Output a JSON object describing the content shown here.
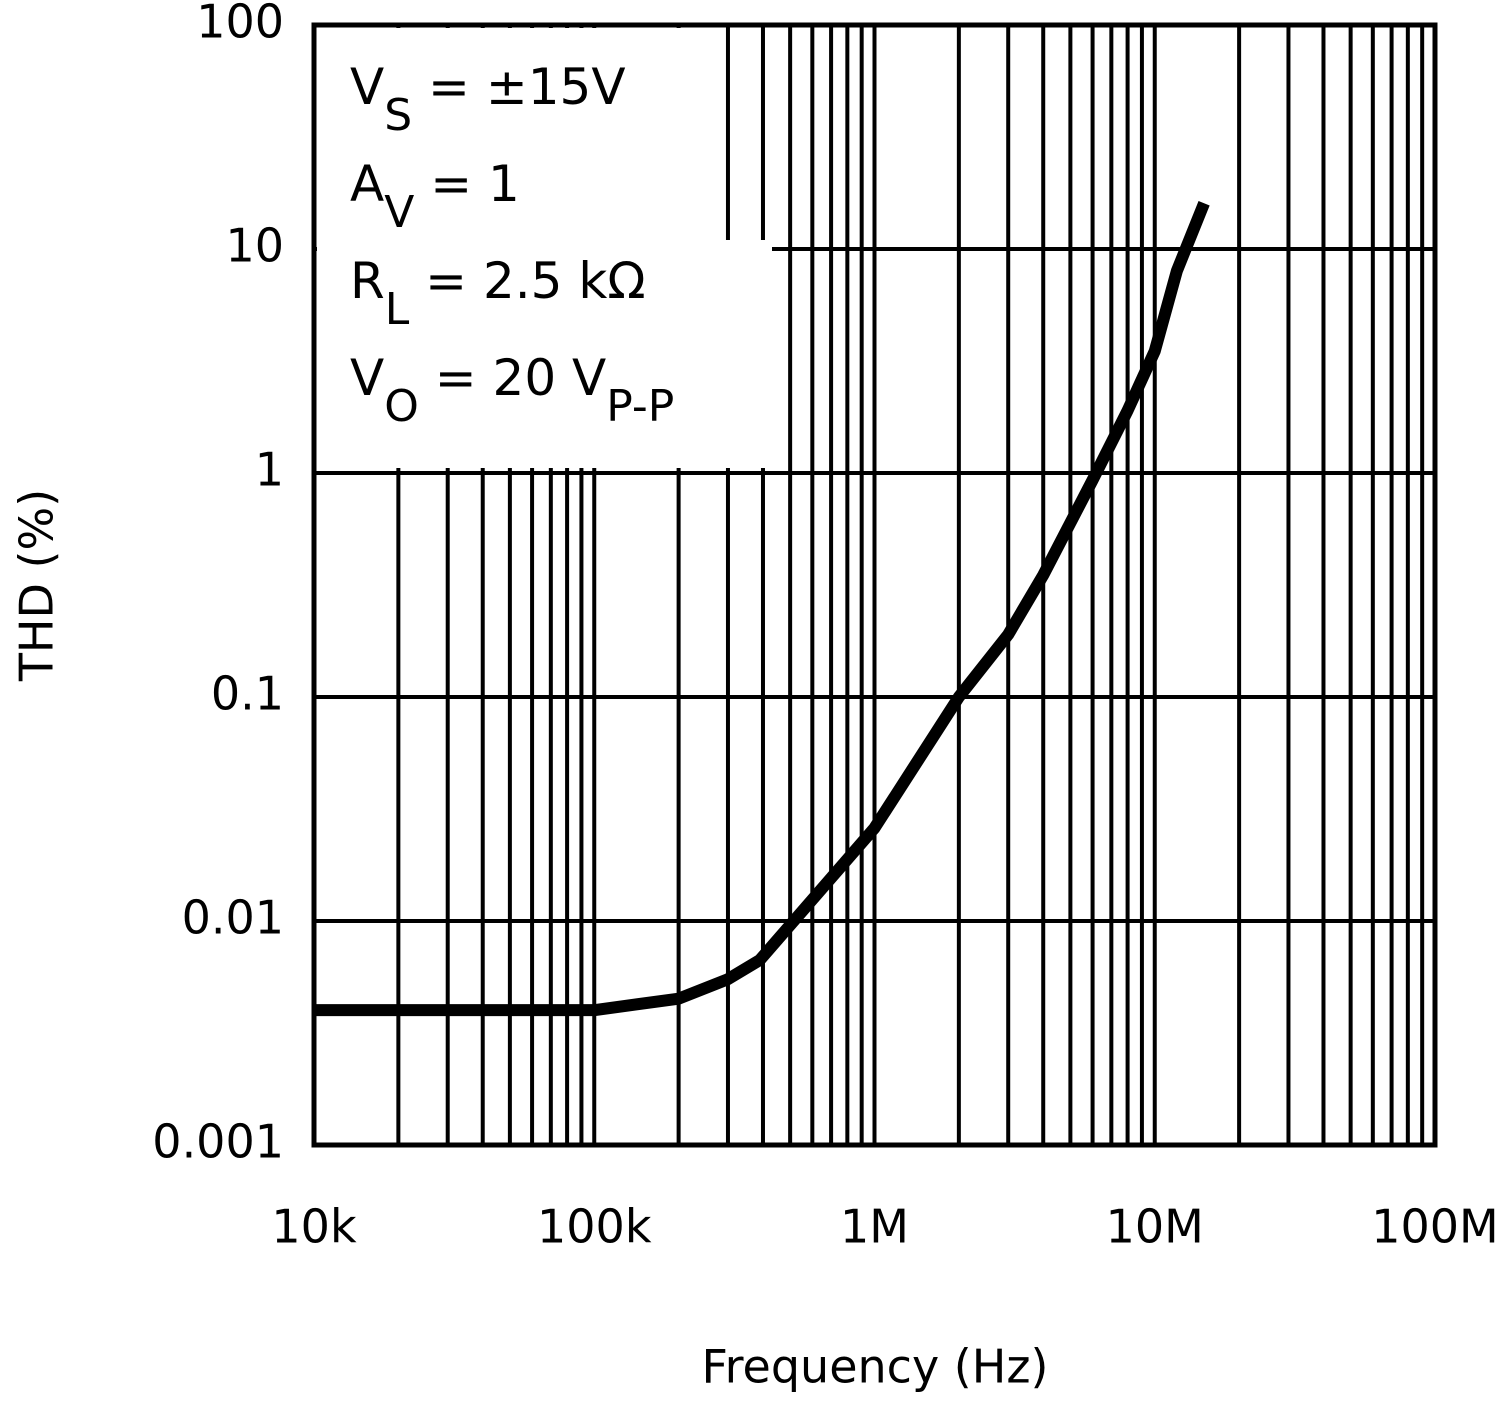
{
  "chart_data": {
    "type": "line",
    "x_label": "Frequency (Hz)",
    "y_label": "THD (%)",
    "annotations": [
      [
        {
          "t": "V"
        },
        {
          "t": "S",
          "sub": true
        },
        {
          "t": " =  ±15V"
        }
      ],
      [
        {
          "t": "A"
        },
        {
          "t": "V",
          "sub": true
        },
        {
          "t": "  =  1"
        }
      ],
      [
        {
          "t": "R"
        },
        {
          "t": "L",
          "sub": true
        },
        {
          "t": "  =  2.5 kΩ"
        }
      ],
      [
        {
          "t": "V"
        },
        {
          "t": "O",
          "sub": true
        },
        {
          "t": "  =  20 V"
        },
        {
          "t": "P-P",
          "sub": true
        }
      ]
    ],
    "x": [
      10000,
      50000,
      100000,
      200000,
      300000,
      390000,
      1000000,
      2000000,
      3000000,
      4000000,
      6000000,
      8000000,
      10000000,
      12000000,
      15000000
    ],
    "series": [
      {
        "color": "#000000",
        "values": [
          0.004,
          0.004,
          0.004,
          0.0045,
          0.0055,
          0.0067,
          0.026,
          0.1,
          0.19,
          0.35,
          0.93,
          1.9,
          3.5,
          8,
          16
        ]
      }
    ],
    "x_log": true,
    "y_log": true,
    "grid": true,
    "minor_x_grid": true,
    "xlim": [
      10000,
      100000000
    ],
    "ylim": [
      0.001,
      100
    ],
    "xticks": [
      {
        "value": 10000,
        "label": "10k"
      },
      {
        "value": 100000,
        "label": "100k"
      },
      {
        "value": 1000000,
        "label": "1M"
      },
      {
        "value": 10000000,
        "label": "10M"
      },
      {
        "value": 100000000,
        "label": "100M"
      }
    ],
    "yticks": [
      0.001,
      0.01,
      0.1,
      1,
      10,
      100
    ]
  }
}
